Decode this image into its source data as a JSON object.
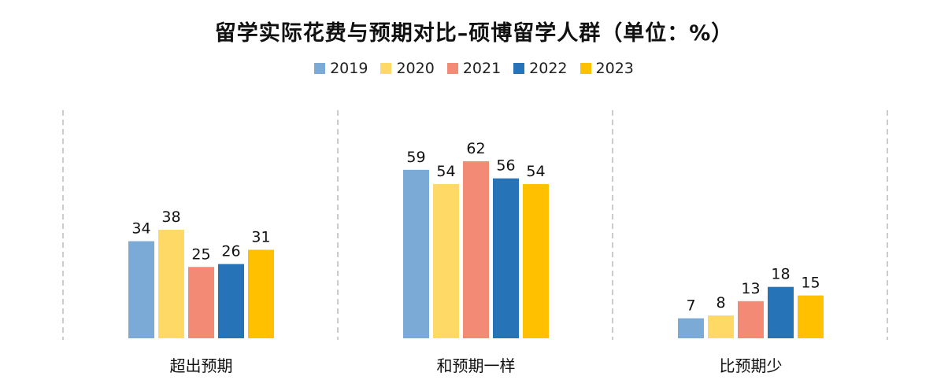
{
  "chart_data": {
    "type": "bar",
    "title": "留学实际花费与预期对比–硕博留学人群（单位：%）",
    "categories": [
      "超出预期",
      "和预期一样",
      "比预期少"
    ],
    "series": [
      {
        "name": "2019",
        "color": "#7BAAD6",
        "values": [
          34,
          59,
          7
        ]
      },
      {
        "name": "2020",
        "color": "#FFD966",
        "values": [
          38,
          54,
          8
        ]
      },
      {
        "name": "2021",
        "color": "#F28A76",
        "values": [
          25,
          62,
          13
        ]
      },
      {
        "name": "2022",
        "color": "#2673B8",
        "values": [
          26,
          56,
          18
        ]
      },
      {
        "name": "2023",
        "color": "#FFC000",
        "values": [
          31,
          54,
          15
        ]
      }
    ],
    "xlabel": "",
    "ylabel": "",
    "ylim": [
      0,
      70
    ],
    "legend_position": "top-center",
    "grid": false
  }
}
